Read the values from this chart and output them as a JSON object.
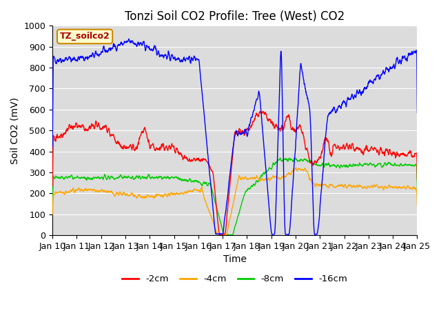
{
  "title": "Tonzi Soil CO2 Profile: Tree (West) CO2",
  "xlabel": "Time",
  "ylabel": "Soil CO2 (mV)",
  "ylim": [
    0,
    1000
  ],
  "xlim": [
    0,
    15
  ],
  "legend_labels": [
    "-2cm",
    "-4cm",
    "-8cm",
    "-16cm"
  ],
  "legend_colors": [
    "#ff0000",
    "#ffa500",
    "#00cc00",
    "#0000ff"
  ],
  "label_box": "TZ_soilco2",
  "x_tick_labels": [
    "Jan 10",
    "Jan 11",
    "Jan 12",
    "Jan 13",
    "Jan 14",
    "Jan 15",
    "Jan 16",
    "Jan 17",
    "Jan 18",
    "Jan 19",
    "Jan 20",
    "Jan 21",
    "Jan 22",
    "Jan 23",
    "Jan 24",
    "Jan 25"
  ],
  "yticks": [
    0,
    100,
    200,
    300,
    400,
    500,
    600,
    700,
    800,
    900,
    1000
  ],
  "title_fontsize": 12,
  "axis_fontsize": 10,
  "tick_fontsize": 9,
  "linewidth": 1.0
}
